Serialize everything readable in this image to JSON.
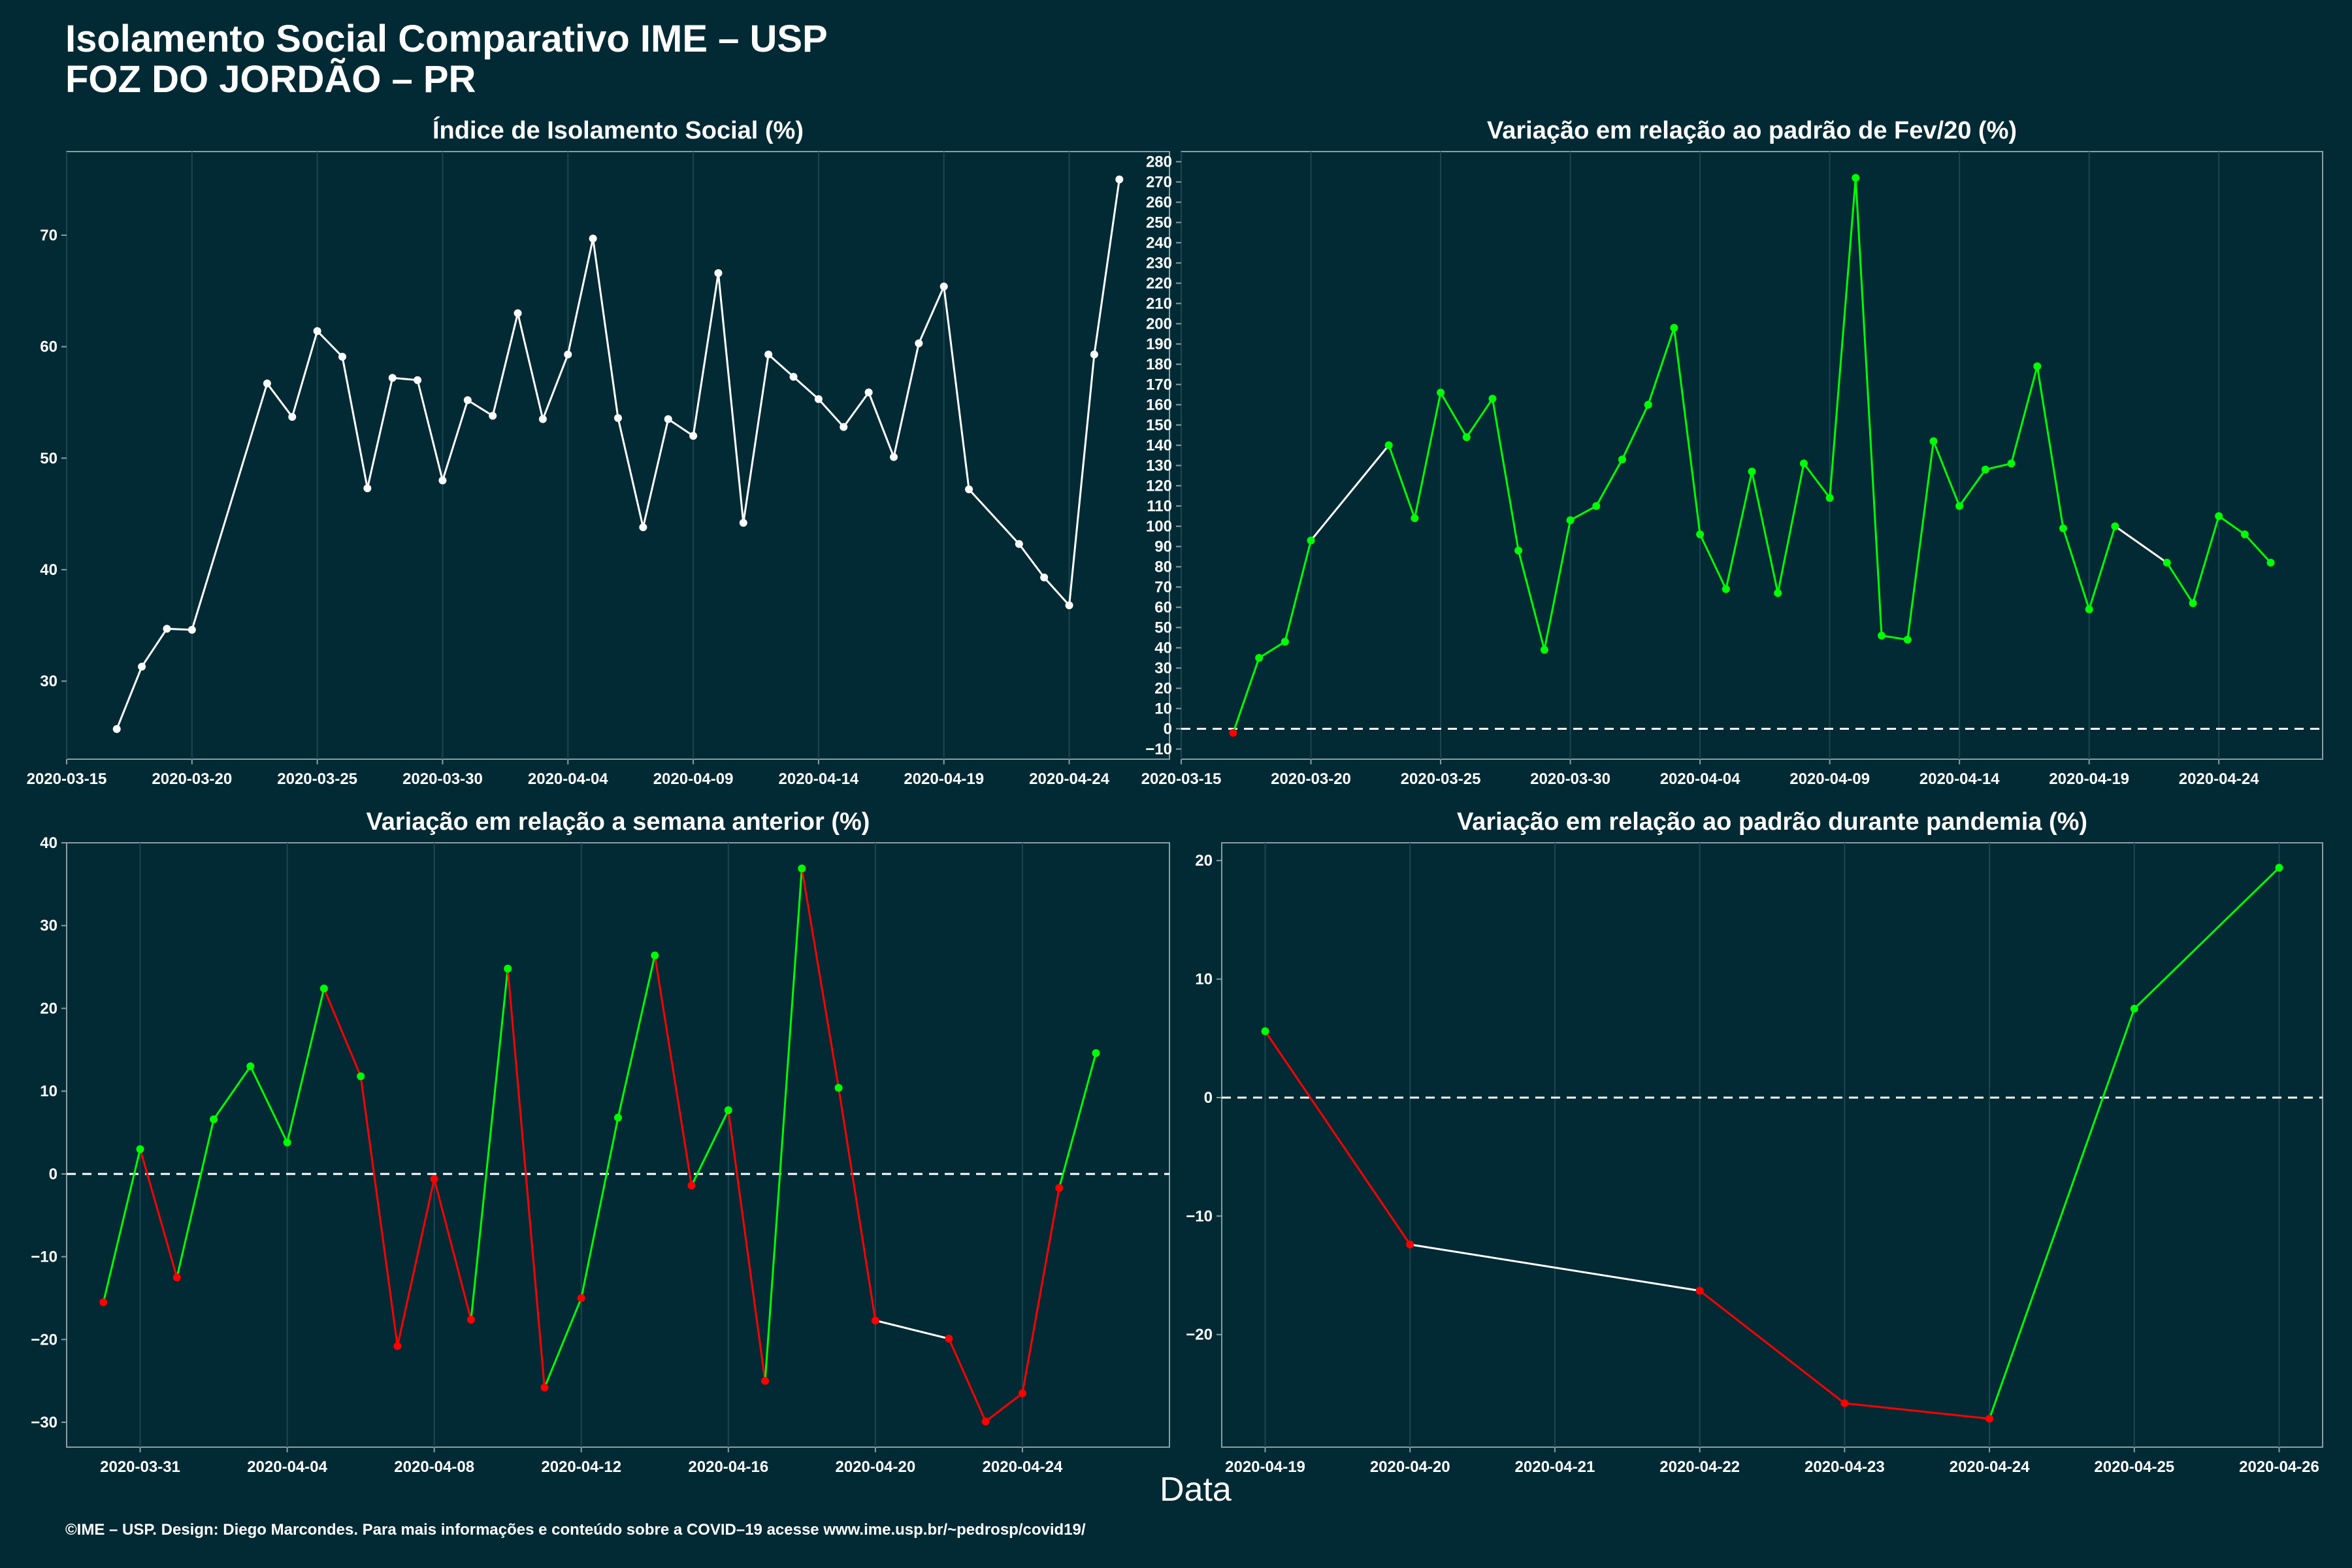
{
  "header": {
    "title_line1": "Isolamento Social Comparativo IME – USP",
    "title_line2": "FOZ DO JORDÃO – PR"
  },
  "common_xlabel": "Data",
  "footer": "©IME – USP. Design: Diego Marcondes. Para mais informações e conteúdo sobre a COVID–19 acesse www.ime.usp.br/~pedrosp/covid19/",
  "colors": {
    "background": "#022a34",
    "grid": "#1d4652",
    "axis": "#8a9ea4",
    "neutral": "#ffffff",
    "increase": "#00ff00",
    "decrease": "#ff0000"
  },
  "chart_data": [
    {
      "type": "line",
      "title": "Índice de Isolamento Social (%)",
      "x_type": "date",
      "xlim": [
        "2020-03-15",
        "2020-04-28"
      ],
      "ylim": [
        23,
        77.5
      ],
      "xticks": [
        "2020-03-15",
        "2020-03-20",
        "2020-03-25",
        "2020-03-30",
        "2020-04-04",
        "2020-04-09",
        "2020-04-14",
        "2020-04-19",
        "2020-04-24"
      ],
      "yticks": [
        30,
        40,
        50,
        60,
        70
      ],
      "grid": true,
      "series": [
        {
          "x": [
            "2020-03-17",
            "2020-03-18",
            "2020-03-19",
            "2020-03-20",
            "2020-03-23",
            "2020-03-24",
            "2020-03-25",
            "2020-03-26",
            "2020-03-27",
            "2020-03-28",
            "2020-03-29",
            "2020-03-30",
            "2020-03-31",
            "2020-04-01",
            "2020-04-02",
            "2020-04-03",
            "2020-04-04",
            "2020-04-05",
            "2020-04-06",
            "2020-04-07",
            "2020-04-08",
            "2020-04-09",
            "2020-04-10",
            "2020-04-11",
            "2020-04-12",
            "2020-04-13",
            "2020-04-14",
            "2020-04-15",
            "2020-04-16",
            "2020-04-17",
            "2020-04-18",
            "2020-04-19",
            "2020-04-20",
            "2020-04-22",
            "2020-04-23",
            "2020-04-24",
            "2020-04-25",
            "2020-04-26"
          ],
          "y": [
            25.7,
            31.3,
            34.7,
            34.6,
            56.7,
            53.7,
            61.4,
            59.1,
            47.3,
            57.2,
            57.0,
            48.0,
            55.2,
            53.8,
            63.0,
            53.5,
            59.3,
            69.7,
            53.6,
            43.8,
            53.5,
            52.0,
            66.6,
            44.2,
            59.3,
            57.3,
            55.3,
            52.8,
            55.9,
            50.1,
            60.3,
            65.4,
            47.2,
            42.3,
            39.3,
            36.8,
            59.3,
            75.0
          ]
        }
      ],
      "segment_colors": [
        "neutral",
        "neutral",
        "neutral",
        "neutral",
        "neutral",
        "neutral",
        "neutral",
        "neutral",
        "neutral",
        "neutral",
        "neutral",
        "neutral",
        "neutral",
        "neutral",
        "neutral",
        "neutral",
        "neutral",
        "neutral",
        "neutral",
        "neutral",
        "neutral",
        "neutral",
        "neutral",
        "neutral",
        "neutral",
        "neutral",
        "neutral",
        "neutral",
        "neutral",
        "neutral",
        "neutral",
        "neutral",
        "neutral",
        "neutral",
        "neutral",
        "neutral",
        "neutral"
      ],
      "point_colors": [
        "neutral",
        "neutral",
        "neutral",
        "neutral",
        "neutral",
        "neutral",
        "neutral",
        "neutral",
        "neutral",
        "neutral",
        "neutral",
        "neutral",
        "neutral",
        "neutral",
        "neutral",
        "neutral",
        "neutral",
        "neutral",
        "neutral",
        "neutral",
        "neutral",
        "neutral",
        "neutral",
        "neutral",
        "neutral",
        "neutral",
        "neutral",
        "neutral",
        "neutral",
        "neutral",
        "neutral",
        "neutral",
        "neutral",
        "neutral",
        "neutral",
        "neutral",
        "neutral",
        "neutral"
      ],
      "ref_line": null
    },
    {
      "type": "line",
      "title": "Variação em relação ao padrão de Fev/20 (%)",
      "x_type": "date",
      "xlim": [
        "2020-03-15",
        "2020-04-28"
      ],
      "ylim": [
        -15,
        285
      ],
      "xticks": [
        "2020-03-15",
        "2020-03-20",
        "2020-03-25",
        "2020-03-30",
        "2020-04-04",
        "2020-04-09",
        "2020-04-14",
        "2020-04-19",
        "2020-04-24"
      ],
      "yticks": [
        -10,
        0,
        10,
        20,
        30,
        40,
        50,
        60,
        70,
        80,
        90,
        100,
        110,
        120,
        130,
        140,
        150,
        160,
        170,
        180,
        190,
        200,
        210,
        220,
        230,
        240,
        250,
        260,
        270,
        280
      ],
      "grid": true,
      "series": [
        {
          "x": [
            "2020-03-17",
            "2020-03-18",
            "2020-03-19",
            "2020-03-20",
            "2020-03-23",
            "2020-03-24",
            "2020-03-25",
            "2020-03-26",
            "2020-03-27",
            "2020-03-28",
            "2020-03-29",
            "2020-03-30",
            "2020-03-31",
            "2020-04-01",
            "2020-04-02",
            "2020-04-03",
            "2020-04-04",
            "2020-04-05",
            "2020-04-06",
            "2020-04-07",
            "2020-04-08",
            "2020-04-09",
            "2020-04-10",
            "2020-04-11",
            "2020-04-12",
            "2020-04-13",
            "2020-04-14",
            "2020-04-15",
            "2020-04-16",
            "2020-04-17",
            "2020-04-18",
            "2020-04-19",
            "2020-04-20",
            "2020-04-22",
            "2020-04-23",
            "2020-04-24",
            "2020-04-25",
            "2020-04-26"
          ],
          "y": [
            -2,
            35,
            43,
            93,
            140,
            104,
            166,
            144,
            163,
            88,
            39,
            103,
            110,
            133,
            160,
            198,
            96,
            69,
            127,
            67,
            131,
            114,
            272,
            46,
            44,
            142,
            110,
            128,
            131,
            179,
            99,
            59,
            100,
            82,
            62,
            105,
            96,
            82
          ]
        }
      ],
      "segment_colors": [
        "increase",
        "increase",
        "increase",
        "neutral",
        "increase",
        "increase",
        "increase",
        "increase",
        "increase",
        "increase",
        "increase",
        "increase",
        "increase",
        "increase",
        "increase",
        "increase",
        "increase",
        "increase",
        "increase",
        "increase",
        "increase",
        "increase",
        "increase",
        "increase",
        "increase",
        "increase",
        "increase",
        "increase",
        "increase",
        "increase",
        "increase",
        "increase",
        "neutral",
        "increase",
        "increase",
        "increase",
        "increase"
      ],
      "point_colors": [
        "decrease",
        "increase",
        "increase",
        "increase",
        "increase",
        "increase",
        "increase",
        "increase",
        "increase",
        "increase",
        "increase",
        "increase",
        "increase",
        "increase",
        "increase",
        "increase",
        "increase",
        "increase",
        "increase",
        "increase",
        "increase",
        "increase",
        "increase",
        "increase",
        "increase",
        "increase",
        "increase",
        "increase",
        "increase",
        "increase",
        "increase",
        "increase",
        "increase",
        "increase",
        "increase",
        "increase",
        "increase",
        "increase"
      ],
      "ref_line": 0
    },
    {
      "type": "line",
      "title": "Variação em relação a semana anterior (%)",
      "x_type": "date",
      "xlim": [
        "2020-03-29",
        "2020-04-28"
      ],
      "ylim": [
        -33,
        40
      ],
      "xticks": [
        "2020-03-31",
        "2020-04-04",
        "2020-04-08",
        "2020-04-12",
        "2020-04-16",
        "2020-04-20",
        "2020-04-24"
      ],
      "yticks": [
        -30,
        -20,
        -10,
        0,
        10,
        20,
        30,
        40
      ],
      "grid": true,
      "series": [
        {
          "x": [
            "2020-03-30",
            "2020-03-31",
            "2020-04-01",
            "2020-04-02",
            "2020-04-03",
            "2020-04-04",
            "2020-04-05",
            "2020-04-06",
            "2020-04-07",
            "2020-04-08",
            "2020-04-09",
            "2020-04-10",
            "2020-04-11",
            "2020-04-12",
            "2020-04-13",
            "2020-04-14",
            "2020-04-15",
            "2020-04-16",
            "2020-04-17",
            "2020-04-18",
            "2020-04-19",
            "2020-04-20",
            "2020-04-22",
            "2020-04-23",
            "2020-04-24",
            "2020-04-25",
            "2020-04-26"
          ],
          "y": [
            -15.5,
            3.0,
            -12.5,
            6.6,
            13.0,
            3.8,
            22.4,
            11.8,
            -20.8,
            -0.6,
            -17.6,
            24.8,
            -25.8,
            -15.0,
            6.8,
            26.4,
            -1.4,
            7.7,
            -25.0,
            36.9,
            10.4,
            -17.7,
            -19.9,
            -29.9,
            -26.5,
            -1.7,
            14.6
          ]
        }
      ],
      "segment_colors": [
        "increase",
        "decrease",
        "increase",
        "increase",
        "increase",
        "increase",
        "decrease",
        "decrease",
        "decrease",
        "decrease",
        "increase",
        "decrease",
        "increase",
        "increase",
        "increase",
        "decrease",
        "increase",
        "decrease",
        "increase",
        "decrease",
        "decrease",
        "neutral",
        "decrease",
        "decrease",
        "decrease",
        "increase"
      ],
      "point_colors": [
        "decrease",
        "increase",
        "decrease",
        "increase",
        "increase",
        "increase",
        "increase",
        "increase",
        "decrease",
        "decrease",
        "decrease",
        "increase",
        "decrease",
        "decrease",
        "increase",
        "increase",
        "decrease",
        "increase",
        "decrease",
        "increase",
        "increase",
        "decrease",
        "decrease",
        "decrease",
        "decrease",
        "decrease",
        "increase"
      ],
      "ref_line": 0
    },
    {
      "type": "line",
      "title": "Variação em relação ao padrão durante pandemia (%)",
      "x_type": "date",
      "xlim": [
        "2020-04-18.7",
        "2020-04-26.3"
      ],
      "ylim": [
        -29.5,
        21.5
      ],
      "xticks": [
        "2020-04-19",
        "2020-04-20",
        "2020-04-21",
        "2020-04-22",
        "2020-04-23",
        "2020-04-24",
        "2020-04-25",
        "2020-04-26"
      ],
      "yticks": [
        -20,
        -10,
        0,
        10,
        20
      ],
      "grid": true,
      "series": [
        {
          "x": [
            "2020-04-19",
            "2020-04-20",
            "2020-04-22",
            "2020-04-23",
            "2020-04-24",
            "2020-04-25",
            "2020-04-26"
          ],
          "y": [
            5.6,
            -12.4,
            -16.3,
            -25.8,
            -27.1,
            7.5,
            19.4
          ]
        }
      ],
      "segment_colors": [
        "decrease",
        "neutral",
        "decrease",
        "decrease",
        "increase",
        "increase"
      ],
      "point_colors": [
        "increase",
        "decrease",
        "decrease",
        "decrease",
        "decrease",
        "increase",
        "increase"
      ],
      "ref_line": 0
    }
  ]
}
